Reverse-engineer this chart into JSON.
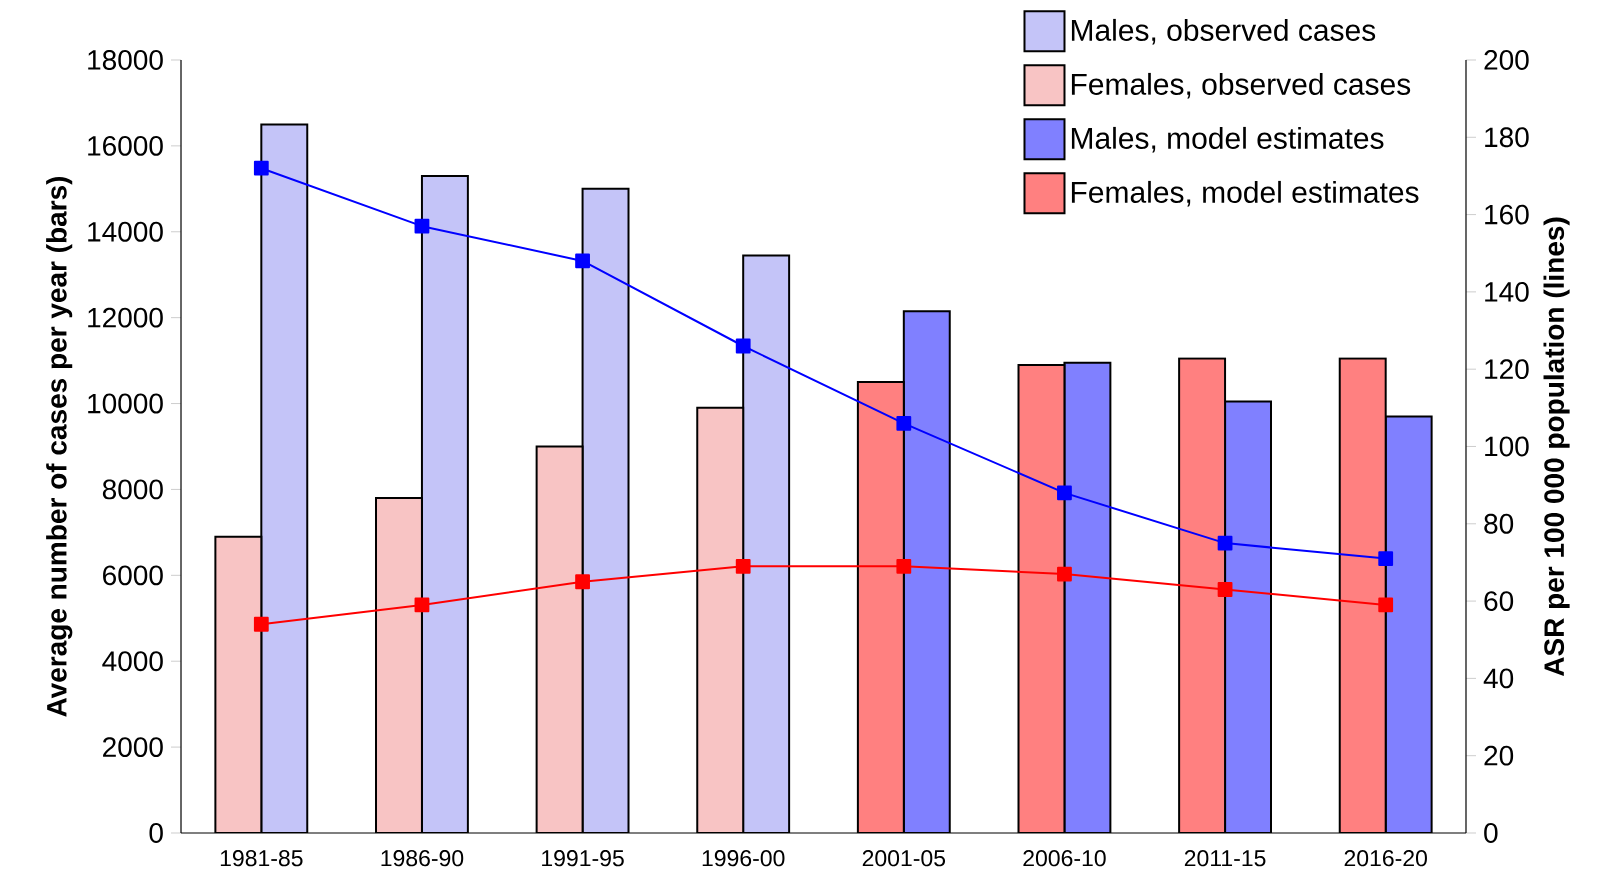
{
  "chart_data": {
    "type": "bar",
    "ylabel": "Average number of cases per year (bars)",
    "y2label": "ASR per 100 000 population (lines)",
    "categories": [
      "1981-85",
      "1986-90",
      "1991-95",
      "1996-00",
      "2001-05",
      "2006-10",
      "2011-15",
      "2016-20"
    ],
    "ylim": [
      0,
      18000
    ],
    "yticks": [
      0,
      2000,
      4000,
      6000,
      8000,
      10000,
      12000,
      14000,
      16000,
      18000
    ],
    "y2lim": [
      0,
      200
    ],
    "y2ticks": [
      0,
      20,
      40,
      60,
      80,
      100,
      120,
      140,
      160,
      180,
      200
    ],
    "legend": "top right",
    "grid": false,
    "series": [
      {
        "name": "Males, observed cases",
        "color": "#c4c4f8",
        "values": [
          16500,
          15300,
          15000,
          13450,
          null,
          null,
          null,
          null
        ]
      },
      {
        "name": "Females, observed cases",
        "color": "#f8c4c4",
        "values": [
          6900,
          7800,
          9000,
          9900,
          null,
          null,
          null,
          null
        ]
      },
      {
        "name": "Males, model estimates",
        "color": "#8080ff",
        "values": [
          null,
          null,
          null,
          null,
          12150,
          10950,
          10050,
          9700
        ]
      },
      {
        "name": "Females, model estimates",
        "color": "#ff8080",
        "values": [
          null,
          null,
          null,
          null,
          10500,
          10900,
          11050,
          11050
        ]
      },
      {
        "type": "line",
        "axis": "y2",
        "marker": "square",
        "line_style": "solid",
        "color": "#0000ff",
        "values": [
          172,
          157,
          148,
          126,
          106,
          88,
          75,
          71
        ]
      },
      {
        "type": "line",
        "axis": "y2",
        "marker": "square",
        "line_style": "solid",
        "color": "#ff0000",
        "values": [
          54,
          59,
          65,
          69,
          69,
          67,
          63,
          59
        ]
      }
    ]
  }
}
